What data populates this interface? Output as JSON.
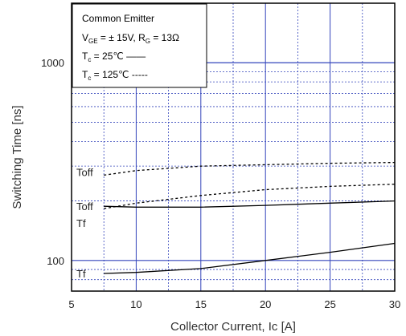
{
  "chart_data": {
    "type": "line",
    "title": "",
    "xlabel": "Collector Current, Ic [A]",
    "ylabel": "Switching Time [ns]",
    "xlim": [
      5,
      30
    ],
    "ylim": [
      70,
      2000
    ],
    "yscale": "log",
    "xticks": [
      "5",
      "10",
      "15",
      "20",
      "25",
      "30"
    ],
    "yticks": [
      {
        "value": 100,
        "label": "100"
      },
      {
        "value": 1000,
        "label": "1000"
      }
    ],
    "grid": true,
    "legend": {
      "placement": "top-left",
      "lines": [
        {
          "main": "Common Emitter",
          "sub": ""
        },
        {
          "main": "V",
          "sub": "GE",
          "rest": " = ±  15V, R",
          "sub2": "G",
          "rest2": " = 13Ω"
        },
        {
          "main": "T",
          "sub": "c",
          "rest": " =   25℃ ——"
        },
        {
          "main": "T",
          "sub": "c",
          "rest": " = 125℃ -----"
        }
      ]
    },
    "series": [
      {
        "label": "Toff",
        "temp": "25",
        "dash": "solid",
        "x": [
          7.5,
          10,
          15,
          20,
          25,
          30
        ],
        "y": [
          188,
          186,
          186,
          190,
          195,
          200
        ]
      },
      {
        "label": "Toff",
        "temp": "125",
        "dash": "dashed",
        "x": [
          7.5,
          10,
          15,
          20,
          25,
          30
        ],
        "y": [
          270,
          285,
          300,
          305,
          310,
          313
        ]
      },
      {
        "label": "Tf",
        "temp": "25",
        "dash": "solid",
        "x": [
          7.5,
          10,
          15,
          20,
          25,
          30
        ],
        "y": [
          86,
          87,
          91,
          100,
          110,
          122
        ]
      },
      {
        "label": "Tf",
        "temp": "125",
        "dash": "dashed",
        "x": [
          7.5,
          10,
          15,
          20,
          25,
          30
        ],
        "y": [
          183,
          195,
          213,
          228,
          237,
          243
        ]
      }
    ],
    "curve_labels": [
      {
        "text": "Toff",
        "series": 1
      },
      {
        "text": "Toff",
        "series": 0
      },
      {
        "text": "Tf",
        "series": 3
      },
      {
        "text": "Tf",
        "series": 2
      }
    ],
    "colors": {
      "frame": "#000000",
      "major_grid": "#3344bb",
      "minor_grid": "#3344bb",
      "curve": "#000000"
    }
  }
}
